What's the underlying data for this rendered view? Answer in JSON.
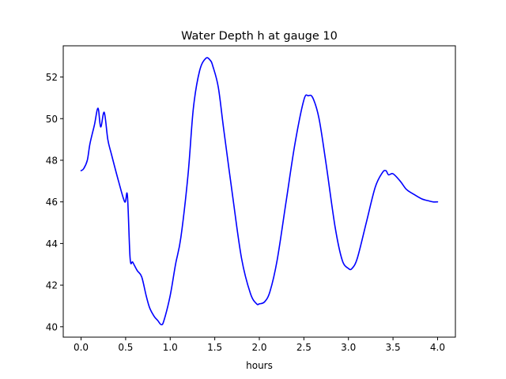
{
  "chart_data": {
    "type": "line",
    "title": "Water Depth h at gauge 10",
    "xlabel": "hours",
    "ylabel": "",
    "xlim": [
      -0.2,
      4.2
    ],
    "ylim": [
      39.5,
      53.5
    ],
    "xticks": [
      0.0,
      0.5,
      1.0,
      1.5,
      2.0,
      2.5,
      3.0,
      3.5,
      4.0
    ],
    "xtick_labels": [
      "0.0",
      "0.5",
      "1.0",
      "1.5",
      "2.0",
      "2.5",
      "3.0",
      "3.5",
      "4.0"
    ],
    "yticks": [
      40,
      42,
      44,
      46,
      48,
      50,
      52
    ],
    "ytick_labels": [
      "40",
      "42",
      "44",
      "46",
      "48",
      "50",
      "52"
    ],
    "grid": false,
    "series": [
      {
        "color": "#0000ff",
        "x": [
          0.0,
          0.03,
          0.07,
          0.1,
          0.15,
          0.19,
          0.22,
          0.26,
          0.3,
          0.34,
          0.42,
          0.49,
          0.52,
          0.55,
          0.58,
          0.63,
          0.68,
          0.73,
          0.77,
          0.82,
          0.86,
          0.9,
          0.93,
          1.0,
          1.06,
          1.12,
          1.2,
          1.26,
          1.33,
          1.4,
          1.45,
          1.48,
          1.54,
          1.6,
          1.7,
          1.8,
          1.9,
          1.97,
          2.0,
          2.06,
          2.12,
          2.2,
          2.3,
          2.4,
          2.5,
          2.55,
          2.6,
          2.67,
          2.75,
          2.85,
          2.93,
          3.0,
          3.04,
          3.1,
          3.2,
          3.3,
          3.38,
          3.42,
          3.45,
          3.5,
          3.58,
          3.65,
          3.72,
          3.82,
          3.9,
          3.95,
          4.0
        ],
        "y": [
          47.5,
          47.6,
          48.0,
          48.8,
          49.7,
          50.5,
          49.6,
          50.3,
          49.0,
          48.3,
          47.0,
          46.0,
          46.3,
          43.3,
          43.1,
          42.7,
          42.4,
          41.5,
          40.9,
          40.5,
          40.3,
          40.1,
          40.3,
          41.5,
          43.0,
          44.3,
          47.3,
          50.5,
          52.3,
          52.9,
          52.8,
          52.5,
          51.5,
          49.5,
          46.3,
          43.3,
          41.6,
          41.1,
          41.1,
          41.2,
          41.7,
          43.2,
          46.0,
          48.8,
          50.9,
          51.1,
          51.0,
          50.0,
          47.8,
          44.8,
          43.2,
          42.8,
          42.8,
          43.3,
          45.0,
          46.7,
          47.4,
          47.5,
          47.3,
          47.35,
          47.0,
          46.6,
          46.4,
          46.15,
          46.05,
          46.0,
          46.0
        ]
      }
    ]
  }
}
